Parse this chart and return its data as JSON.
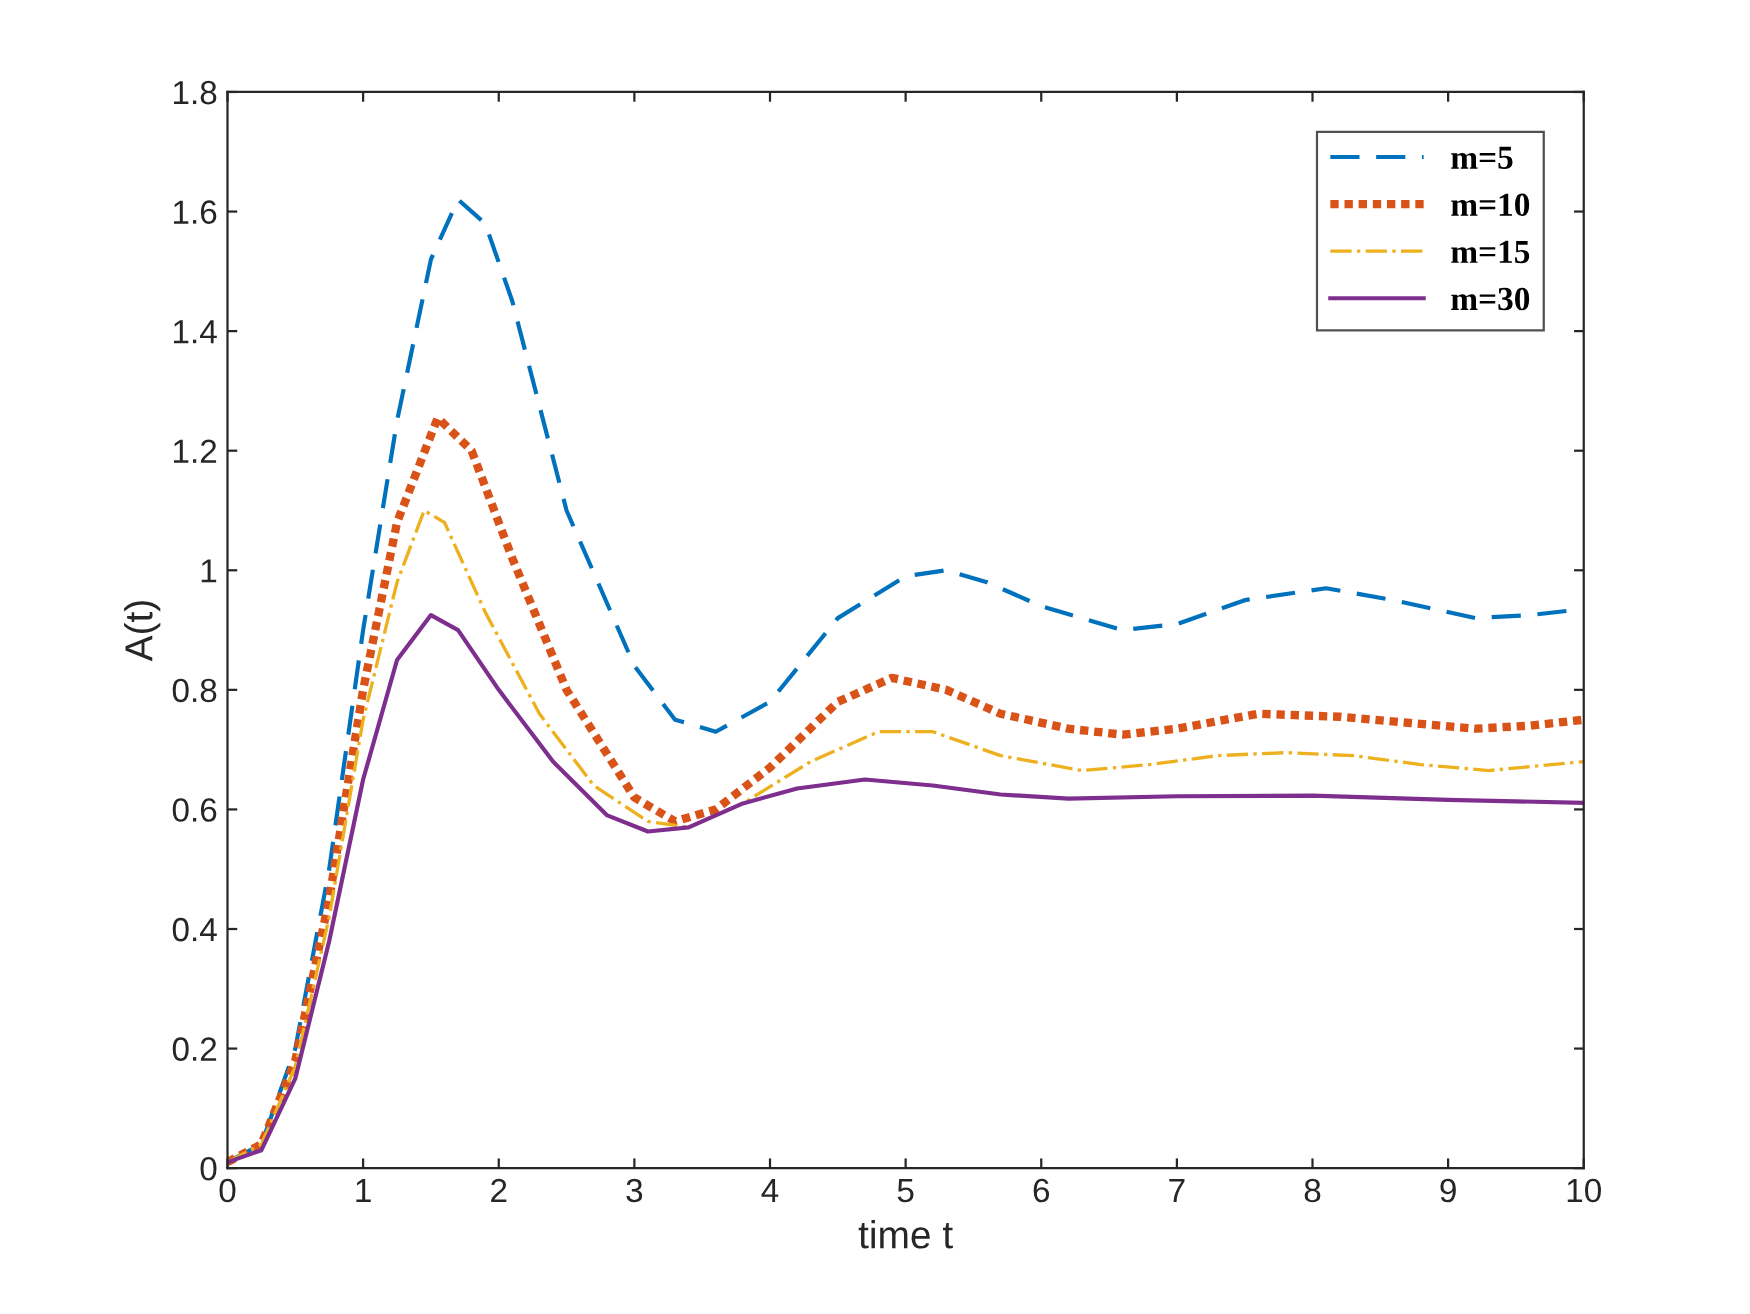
{
  "chart_data": {
    "type": "line",
    "xlabel": "time t",
    "ylabel": "A(t)",
    "xlim": [
      0,
      10
    ],
    "ylim": [
      0,
      1.8
    ],
    "xticks": [
      0,
      1,
      2,
      3,
      4,
      5,
      6,
      7,
      8,
      9,
      10
    ],
    "yticks": [
      0,
      0.2,
      0.4,
      0.6,
      0.8,
      1,
      1.2,
      1.4,
      1.6,
      1.8
    ],
    "grid": false,
    "legend": "top right",
    "marker": "none",
    "series": [
      {
        "name": "m=5",
        "color": "#0072bd",
        "line_style": "dashed",
        "x": [
          0,
          0.25,
          0.5,
          0.75,
          1.0,
          1.25,
          1.5,
          1.7,
          1.9,
          2.1,
          2.5,
          3.0,
          3.3,
          3.6,
          4.0,
          4.5,
          5.0,
          5.3,
          5.6,
          6.0,
          6.6,
          7.0,
          7.5,
          8.1,
          8.6,
          9.2,
          9.6,
          10
        ],
        "values": [
          0.01,
          0.04,
          0.2,
          0.5,
          0.9,
          1.25,
          1.52,
          1.62,
          1.58,
          1.45,
          1.1,
          0.84,
          0.75,
          0.73,
          0.78,
          0.92,
          0.99,
          1.0,
          0.98,
          0.94,
          0.9,
          0.91,
          0.95,
          0.97,
          0.95,
          0.92,
          0.925,
          0.935
        ]
      },
      {
        "name": "m=10",
        "color": "#d95319",
        "line_style": "dotted",
        "x": [
          0,
          0.25,
          0.5,
          0.75,
          1.0,
          1.25,
          1.55,
          1.8,
          2.1,
          2.5,
          3.0,
          3.3,
          3.6,
          4.0,
          4.5,
          4.9,
          5.3,
          5.7,
          6.2,
          6.6,
          7.0,
          7.6,
          8.2,
          8.7,
          9.2,
          9.6,
          10
        ],
        "values": [
          0.01,
          0.04,
          0.18,
          0.45,
          0.8,
          1.08,
          1.255,
          1.2,
          1.02,
          0.8,
          0.62,
          0.58,
          0.6,
          0.67,
          0.78,
          0.82,
          0.8,
          0.76,
          0.735,
          0.725,
          0.735,
          0.76,
          0.755,
          0.745,
          0.735,
          0.74,
          0.75
        ]
      },
      {
        "name": "m=15",
        "color": "#edb120",
        "line_style": "dashdot",
        "x": [
          0,
          0.25,
          0.5,
          0.75,
          1.0,
          1.25,
          1.45,
          1.6,
          1.9,
          2.3,
          2.7,
          3.1,
          3.4,
          3.8,
          4.3,
          4.8,
          5.2,
          5.7,
          6.3,
          6.8,
          7.3,
          7.8,
          8.3,
          8.8,
          9.3,
          10
        ],
        "values": [
          0.01,
          0.04,
          0.17,
          0.42,
          0.75,
          0.98,
          1.1,
          1.08,
          0.93,
          0.76,
          0.64,
          0.58,
          0.57,
          0.61,
          0.68,
          0.73,
          0.73,
          0.69,
          0.665,
          0.675,
          0.69,
          0.695,
          0.69,
          0.675,
          0.665,
          0.68
        ]
      },
      {
        "name": "m=30",
        "color": "#7e2f8e",
        "line_style": "solid",
        "x": [
          0,
          0.25,
          0.5,
          0.75,
          1.0,
          1.25,
          1.5,
          1.7,
          2.0,
          2.4,
          2.8,
          3.1,
          3.4,
          3.8,
          4.2,
          4.7,
          5.2,
          5.7,
          6.2,
          7,
          8,
          9,
          10
        ],
        "values": [
          0.01,
          0.03,
          0.15,
          0.38,
          0.65,
          0.85,
          0.925,
          0.9,
          0.8,
          0.68,
          0.59,
          0.563,
          0.57,
          0.61,
          0.635,
          0.65,
          0.64,
          0.625,
          0.618,
          0.622,
          0.623,
          0.616,
          0.611
        ]
      }
    ]
  }
}
